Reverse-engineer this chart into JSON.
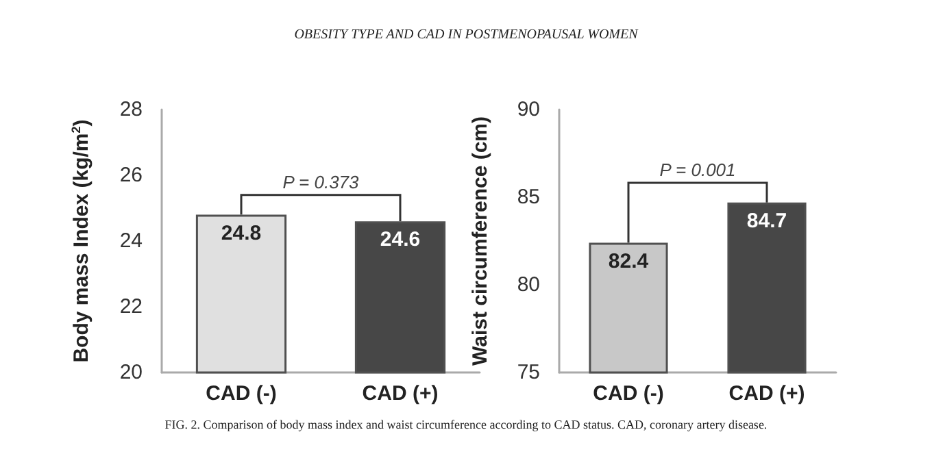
{
  "chart_data": [
    {
      "type": "bar",
      "title": "OBESITY TYPE AND CAD IN POSTMENOPAUSAL WOMEN",
      "ylabel": "Body mass Index (kg/m$^{2}$)",
      "categories": [
        "CAD (-)",
        "CAD (+)"
      ],
      "values": [
        24.8,
        24.6
      ],
      "colors": [
        "#e0e0e0",
        "#474747"
      ],
      "ylim": [
        20,
        28
      ],
      "yticks": [
        20,
        22,
        24,
        26,
        28
      ],
      "grid": false,
      "data_labels": true,
      "annotations": [
        "P = 0.373"
      ]
    },
    {
      "type": "bar",
      "ylabel": "Waist circumference (cm)",
      "categories": [
        "CAD (-)",
        "CAD (+)"
      ],
      "values": [
        82.4,
        84.7
      ],
      "colors": [
        "#c8c8c8",
        "#474747"
      ],
      "ylim": [
        75,
        90
      ],
      "yticks": [
        75,
        80,
        85,
        90
      ],
      "grid": false,
      "data_labels": true,
      "annotations": [
        "P = 0.001",
        "FIG. 2. Comparison of body mass index and waist circumference according to CAD status. CAD, coronary artery disease."
      ]
    }
  ]
}
